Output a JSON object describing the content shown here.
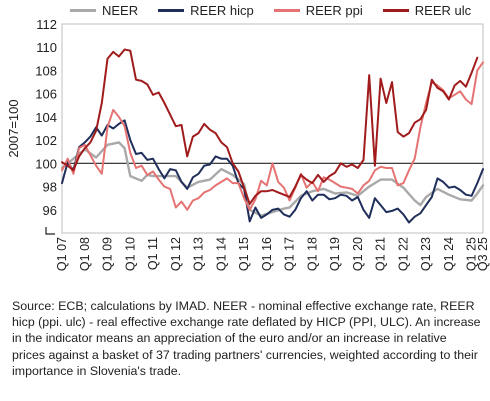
{
  "chart_data": {
    "type": "line",
    "ylabel": "2007=100",
    "ylim": [
      94,
      112
    ],
    "yticks": [
      96,
      98,
      100,
      102,
      104,
      106,
      108,
      110,
      112
    ],
    "x_start_quarter": "2007Q1",
    "x_end_quarter": "2025Q3",
    "xtick_labels": [
      "Q1 07",
      "Q1 08",
      "Q1 09",
      "Q1 10",
      "Q1 11",
      "Q1 12",
      "Q1 13",
      "Q1 14",
      "Q1 15",
      "Q1 16",
      "Q1 17",
      "Q1 18",
      "Q1 19",
      "Q1 20",
      "Q1 21",
      "Q1 22",
      "Q1 23",
      "Q1 24",
      "Q1 25",
      "Q3 25"
    ],
    "xtick_index": [
      0,
      4,
      8,
      12,
      16,
      20,
      24,
      28,
      32,
      36,
      40,
      44,
      48,
      52,
      56,
      60,
      64,
      68,
      72,
      74
    ],
    "reference_line": 100,
    "legend_position": "top",
    "grid": false,
    "series": [
      {
        "name": "NEER",
        "color": "#a9a9a9",
        "width": 2.4,
        "points": [
          [
            0,
            99.6
          ],
          [
            4,
            101.2
          ],
          [
            6,
            100.5
          ],
          [
            8,
            101.6
          ],
          [
            10,
            101.8
          ],
          [
            11,
            101.3
          ],
          [
            12,
            98.9
          ],
          [
            14,
            98.5
          ],
          [
            15,
            99.0
          ],
          [
            16,
            98.9
          ],
          [
            18,
            98.9
          ],
          [
            20,
            98.9
          ],
          [
            22,
            97.9
          ],
          [
            24,
            98.4
          ],
          [
            26,
            98.6
          ],
          [
            28,
            99.5
          ],
          [
            30,
            99.0
          ],
          [
            32,
            98.2
          ],
          [
            33,
            96.0
          ],
          [
            35,
            95.5
          ],
          [
            37,
            95.8
          ],
          [
            39,
            96.1
          ],
          [
            40,
            96.2
          ],
          [
            42,
            97.2
          ],
          [
            44,
            97.6
          ],
          [
            46,
            97.8
          ],
          [
            48,
            97.4
          ],
          [
            50,
            97.5
          ],
          [
            52,
            97.2
          ],
          [
            54,
            98.0
          ],
          [
            55,
            98.3
          ],
          [
            56,
            98.6
          ],
          [
            58,
            98.6
          ],
          [
            60,
            97.9
          ],
          [
            62,
            96.8
          ],
          [
            63,
            96.4
          ],
          [
            64,
            97.1
          ],
          [
            66,
            97.8
          ],
          [
            68,
            97.3
          ],
          [
            70,
            96.9
          ],
          [
            72,
            96.8
          ],
          [
            73,
            97.4
          ],
          [
            74,
            98.1
          ]
        ]
      },
      {
        "name": "REER hicp",
        "color": "#1f2e5a",
        "width": 2.0,
        "points": [
          [
            0,
            98.3
          ],
          [
            1,
            100.1
          ],
          [
            2,
            99.4
          ],
          [
            3,
            101.4
          ],
          [
            4,
            101.8
          ],
          [
            5,
            102.3
          ],
          [
            6,
            103.1
          ],
          [
            7,
            102.4
          ],
          [
            8,
            103.3
          ],
          [
            9,
            103.0
          ],
          [
            10,
            103.4
          ],
          [
            11,
            103.7
          ],
          [
            12,
            102.0
          ],
          [
            13,
            100.8
          ],
          [
            14,
            100.9
          ],
          [
            15,
            100.3
          ],
          [
            16,
            100.4
          ],
          [
            17,
            99.5
          ],
          [
            18,
            98.7
          ],
          [
            19,
            99.5
          ],
          [
            20,
            99.4
          ],
          [
            21,
            98.4
          ],
          [
            22,
            97.8
          ],
          [
            23,
            98.8
          ],
          [
            24,
            99.1
          ],
          [
            25,
            99.8
          ],
          [
            26,
            99.9
          ],
          [
            27,
            100.6
          ],
          [
            28,
            100.4
          ],
          [
            29,
            100.4
          ],
          [
            30,
            99.8
          ],
          [
            31,
            98.3
          ],
          [
            32,
            97.8
          ],
          [
            33,
            95.0
          ],
          [
            34,
            96.2
          ],
          [
            35,
            95.3
          ],
          [
            36,
            95.6
          ],
          [
            37,
            96.0
          ],
          [
            38,
            96.1
          ],
          [
            39,
            95.6
          ],
          [
            40,
            95.4
          ],
          [
            41,
            96.0
          ],
          [
            42,
            97.0
          ],
          [
            43,
            97.6
          ],
          [
            44,
            96.8
          ],
          [
            45,
            97.3
          ],
          [
            46,
            97.3
          ],
          [
            47,
            96.9
          ],
          [
            48,
            97.0
          ],
          [
            49,
            97.3
          ],
          [
            50,
            97.2
          ],
          [
            51,
            96.8
          ],
          [
            52,
            97.1
          ],
          [
            53,
            96.0
          ],
          [
            54,
            95.3
          ],
          [
            55,
            97.0
          ],
          [
            56,
            96.4
          ],
          [
            57,
            95.8
          ],
          [
            58,
            95.9
          ],
          [
            59,
            96.1
          ],
          [
            60,
            95.6
          ],
          [
            61,
            94.9
          ],
          [
            62,
            95.4
          ],
          [
            63,
            95.7
          ],
          [
            64,
            96.4
          ],
          [
            65,
            97.1
          ],
          [
            66,
            98.7
          ],
          [
            67,
            98.4
          ],
          [
            68,
            97.9
          ],
          [
            69,
            98.0
          ],
          [
            70,
            97.7
          ],
          [
            71,
            97.3
          ],
          [
            72,
            97.2
          ],
          [
            73,
            98.3
          ],
          [
            74,
            99.5
          ]
        ]
      },
      {
        "name": "REER ppi",
        "color": "#e57373",
        "width": 2.0,
        "points": [
          [
            0,
            99.4
          ],
          [
            1,
            100.4
          ],
          [
            2,
            99.1
          ],
          [
            3,
            101.3
          ],
          [
            4,
            101.6
          ],
          [
            5,
            100.7
          ],
          [
            6,
            99.8
          ],
          [
            7,
            99.1
          ],
          [
            8,
            103.1
          ],
          [
            9,
            104.6
          ],
          [
            10,
            104.0
          ],
          [
            11,
            103.2
          ],
          [
            12,
            100.9
          ],
          [
            13,
            99.6
          ],
          [
            14,
            99.8
          ],
          [
            15,
            99.0
          ],
          [
            16,
            99.3
          ],
          [
            17,
            98.6
          ],
          [
            18,
            98.0
          ],
          [
            19,
            97.8
          ],
          [
            20,
            96.2
          ],
          [
            21,
            96.7
          ],
          [
            22,
            96.0
          ],
          [
            23,
            96.8
          ],
          [
            24,
            97.0
          ],
          [
            25,
            97.5
          ],
          [
            26,
            97.7
          ],
          [
            27,
            98.1
          ],
          [
            28,
            98.4
          ],
          [
            29,
            98.7
          ],
          [
            30,
            98.3
          ],
          [
            31,
            98.3
          ],
          [
            32,
            97.0
          ],
          [
            33,
            96.0
          ],
          [
            34,
            96.9
          ],
          [
            35,
            98.5
          ],
          [
            36,
            98.1
          ],
          [
            37,
            100.0
          ],
          [
            38,
            98.4
          ],
          [
            39,
            97.9
          ],
          [
            40,
            96.8
          ],
          [
            41,
            97.9
          ],
          [
            42,
            99.1
          ],
          [
            43,
            97.9
          ],
          [
            44,
            98.4
          ],
          [
            45,
            97.6
          ],
          [
            46,
            98.8
          ],
          [
            47,
            98.6
          ],
          [
            48,
            98.3
          ],
          [
            49,
            98.0
          ],
          [
            50,
            97.9
          ],
          [
            51,
            97.8
          ],
          [
            52,
            97.4
          ],
          [
            53,
            98.1
          ],
          [
            54,
            98.5
          ],
          [
            55,
            99.4
          ],
          [
            56,
            99.7
          ],
          [
            57,
            99.6
          ],
          [
            58,
            99.6
          ],
          [
            59,
            98.1
          ],
          [
            60,
            98.3
          ],
          [
            61,
            99.4
          ],
          [
            62,
            100.4
          ],
          [
            63,
            103.1
          ],
          [
            64,
            105.2
          ],
          [
            65,
            107.0
          ],
          [
            66,
            106.7
          ],
          [
            67,
            106.3
          ],
          [
            68,
            105.6
          ],
          [
            69,
            105.9
          ],
          [
            70,
            106.2
          ],
          [
            71,
            105.5
          ],
          [
            72,
            105.1
          ],
          [
            73,
            108.0
          ],
          [
            74,
            108.7
          ]
        ]
      },
      {
        "name": "REER ulc",
        "color": "#a01c1c",
        "width": 2.0,
        "points": [
          [
            0,
            100.1
          ],
          [
            1,
            99.8
          ],
          [
            2,
            99.4
          ],
          [
            3,
            100.6
          ],
          [
            4,
            101.3
          ],
          [
            5,
            101.8
          ],
          [
            6,
            102.8
          ],
          [
            7,
            105.2
          ],
          [
            8,
            109.0
          ],
          [
            9,
            109.6
          ],
          [
            10,
            109.2
          ],
          [
            11,
            109.8
          ],
          [
            12,
            109.7
          ],
          [
            13,
            107.2
          ],
          [
            14,
            107.1
          ],
          [
            15,
            106.8
          ],
          [
            16,
            105.9
          ],
          [
            17,
            106.1
          ],
          [
            18,
            105.2
          ],
          [
            19,
            104.2
          ],
          [
            20,
            103.2
          ],
          [
            21,
            103.3
          ],
          [
            22,
            100.6
          ],
          [
            23,
            102.3
          ],
          [
            24,
            102.6
          ],
          [
            25,
            103.4
          ],
          [
            26,
            102.9
          ],
          [
            27,
            102.6
          ],
          [
            28,
            101.8
          ],
          [
            29,
            101.4
          ],
          [
            30,
            100.0
          ],
          [
            31,
            99.3
          ],
          [
            32,
            97.9
          ],
          [
            33,
            96.5
          ],
          [
            34,
            97.2
          ],
          [
            35,
            97.6
          ],
          [
            36,
            97.6
          ],
          [
            37,
            97.7
          ],
          [
            38,
            97.5
          ],
          [
            39,
            97.3
          ],
          [
            40,
            97.1
          ],
          [
            41,
            98.0
          ],
          [
            42,
            99.0
          ],
          [
            43,
            98.6
          ],
          [
            44,
            98.3
          ],
          [
            45,
            99.0
          ],
          [
            46,
            98.4
          ],
          [
            47,
            98.9
          ],
          [
            48,
            99.2
          ],
          [
            49,
            100.0
          ],
          [
            50,
            99.7
          ],
          [
            51,
            99.9
          ],
          [
            52,
            99.6
          ],
          [
            53,
            100.3
          ],
          [
            54,
            107.6
          ],
          [
            55,
            99.8
          ],
          [
            56,
            107.3
          ],
          [
            57,
            105.2
          ],
          [
            58,
            107.0
          ],
          [
            59,
            102.7
          ],
          [
            60,
            102.3
          ],
          [
            61,
            102.6
          ],
          [
            62,
            103.5
          ],
          [
            63,
            103.8
          ],
          [
            64,
            104.6
          ],
          [
            65,
            107.2
          ],
          [
            66,
            106.5
          ],
          [
            67,
            106.2
          ],
          [
            68,
            105.5
          ],
          [
            69,
            106.7
          ],
          [
            70,
            107.1
          ],
          [
            71,
            106.6
          ],
          [
            72,
            107.8
          ],
          [
            73,
            109.1
          ]
        ]
      }
    ]
  },
  "source_text": "Source: ECB; calculations by IMAD. NEER - nominal effective exchange rate, REER hicp (ppi. ulc) - real effective exchange rate deflated by HICP (PPI, ULC). An increase in the indicator means an appreciation of the euro and/or an increase in relative prices against a basket of 37 trading partners' currencies, weighted according to their importance in Slovenia's trade."
}
